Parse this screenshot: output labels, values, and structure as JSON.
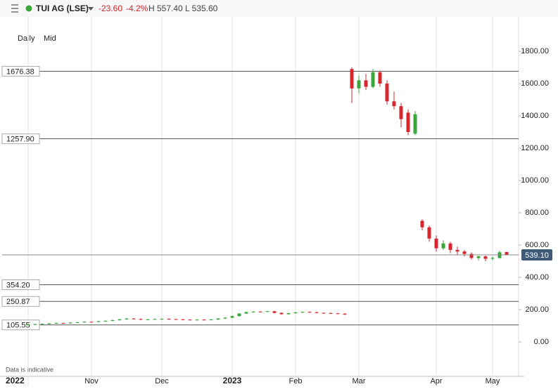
{
  "header": {
    "title": "TUI AG (LSE)",
    "change": "-23.60",
    "change_pct": "-4.2%",
    "range": "H 557.40 L 535.60"
  },
  "toolbar": {
    "interval": "Daily",
    "price_type": "Mid"
  },
  "footnote": "Data is indicative",
  "chart_data": {
    "type": "candlestick",
    "categories": [
      "2022",
      null,
      null,
      null,
      null,
      null,
      null,
      null,
      null,
      "Nov",
      null,
      null,
      null,
      null,
      null,
      null,
      null,
      null,
      null,
      "Dec",
      null,
      null,
      null,
      null,
      null,
      null,
      null,
      null,
      null,
      "2023",
      null,
      null,
      null,
      null,
      null,
      null,
      null,
      null,
      "Feb",
      null,
      null,
      null,
      null,
      null,
      null,
      null,
      null,
      "Mar",
      null,
      null,
      null,
      null,
      null,
      null,
      null,
      null,
      null,
      null,
      "Apr",
      null,
      null,
      null,
      null,
      null,
      null,
      null,
      "May",
      null,
      null
    ],
    "open": [
      106,
      108,
      110,
      112,
      115,
      117,
      116,
      120,
      122,
      125,
      124,
      128,
      131,
      135,
      140,
      145,
      142,
      138,
      140,
      142,
      143,
      141,
      140,
      138,
      137,
      138,
      137,
      139,
      145,
      150,
      160,
      176,
      185,
      188,
      187,
      190,
      180,
      172,
      178,
      183,
      186,
      184,
      180,
      179,
      177,
      175,
      1690,
      1570,
      1620,
      1580,
      1670,
      1600,
      1490,
      1460,
      1420,
      1290,
      750,
      710,
      640,
      580,
      610,
      570,
      560,
      545,
      520,
      530,
      515,
      520,
      557
    ],
    "high": [
      111,
      113,
      115,
      118,
      120,
      120,
      123,
      125,
      128,
      127,
      131,
      134,
      138,
      143,
      148,
      148,
      145,
      143,
      145,
      146,
      146,
      144,
      143,
      141,
      141,
      141,
      142,
      148,
      153,
      163,
      179,
      188,
      191,
      191,
      193,
      193,
      183,
      181,
      186,
      189,
      189,
      187,
      183,
      182,
      180,
      178,
      1700,
      1650,
      1660,
      1690,
      1680,
      1620,
      1550,
      1480,
      1440,
      1430,
      760,
      720,
      660,
      630,
      620,
      590,
      570,
      555,
      535,
      535,
      530,
      565,
      557
    ],
    "low": [
      103,
      105,
      107,
      109,
      112,
      113,
      113,
      117,
      119,
      121,
      121,
      125,
      128,
      132,
      137,
      139,
      135,
      135,
      137,
      139,
      138,
      137,
      135,
      134,
      134,
      134,
      134,
      136,
      142,
      147,
      157,
      173,
      182,
      184,
      184,
      177,
      169,
      169,
      175,
      180,
      181,
      177,
      176,
      174,
      172,
      167,
      1480,
      1540,
      1560,
      1570,
      1580,
      1470,
      1440,
      1330,
      1280,
      1280,
      690,
      620,
      560,
      570,
      550,
      540,
      530,
      510,
      505,
      500,
      505,
      515,
      536
    ],
    "close": [
      108,
      110,
      112,
      115,
      117,
      116,
      120,
      122,
      125,
      124,
      128,
      131,
      135,
      140,
      145,
      142,
      138,
      140,
      142,
      143,
      141,
      140,
      138,
      137,
      138,
      137,
      139,
      145,
      150,
      160,
      176,
      185,
      188,
      187,
      190,
      180,
      172,
      178,
      183,
      186,
      184,
      180,
      179,
      177,
      175,
      170,
      1570,
      1620,
      1580,
      1670,
      1600,
      1490,
      1460,
      1380,
      1300,
      1410,
      710,
      640,
      580,
      610,
      570,
      560,
      545,
      520,
      530,
      515,
      520,
      555,
      540
    ],
    "up_color": "#3aa53a",
    "down_color": "#d7262d",
    "ylim": [
      -187,
      1987
    ],
    "yticks": [
      {
        "value": 0,
        "label": "0.00"
      },
      {
        "value": 200,
        "label": "200.00"
      },
      {
        "value": 400,
        "label": "400.00"
      },
      {
        "value": 600,
        "label": "600.00"
      },
      {
        "value": 800,
        "label": "800.00"
      },
      {
        "value": 1000,
        "label": "1000.00"
      },
      {
        "value": 1200,
        "label": "1200.00"
      },
      {
        "value": 1400,
        "label": "1400.00"
      },
      {
        "value": 1600,
        "label": "1600.00"
      },
      {
        "value": 1800,
        "label": "1800.00"
      }
    ],
    "levels": [
      {
        "value": 1676.38,
        "label": "1676.38"
      },
      {
        "value": 1257.9,
        "label": "1257.90"
      },
      {
        "value": 354.2,
        "label": "354.20"
      },
      {
        "value": 250.87,
        "label": "250.87"
      },
      {
        "value": 105.55,
        "label": "105.55"
      }
    ],
    "last_price": {
      "value": 539.1,
      "label": "539.10"
    }
  }
}
